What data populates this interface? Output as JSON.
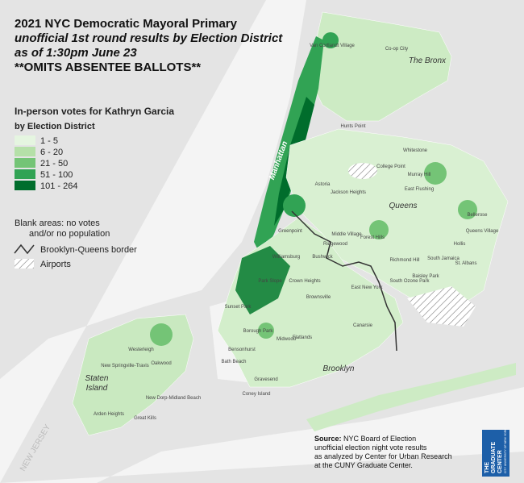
{
  "title": {
    "lines": [
      "2021 NYC Democratic Mayoral Primary",
      "unofficial 1st round results by Election District",
      "as of 1:30pm June 23",
      "**OMITS ABSENTEE BALLOTS**"
    ]
  },
  "legend": {
    "title": "In-person votes for Kathryn Garcia",
    "subtitle": "by Election District",
    "classes": [
      {
        "label": "1 - 5",
        "color": "#e5f5e0"
      },
      {
        "label": "6 - 20",
        "color": "#b5e0a8"
      },
      {
        "label": "21 - 50",
        "color": "#74c476"
      },
      {
        "label": "51 - 100",
        "color": "#31a354"
      },
      {
        "label": "101 - 264",
        "color": "#006d2c"
      }
    ]
  },
  "notes": {
    "blank": [
      "Blank areas: no votes",
      "and/or no population"
    ],
    "border": "Brooklyn-Queens border",
    "airports": "Airports"
  },
  "boroughs": [
    "The Bronx",
    "Queens",
    "Brooklyn",
    "Staten Island",
    "Manhattan"
  ],
  "neighborhoods": [
    "Van Cortlandt Village",
    "Co-op City",
    "Hunts Point",
    "Whitestone",
    "College Point",
    "Murray Hill",
    "East Flushing",
    "Bellerose",
    "Hollis",
    "Queens Village",
    "South Jamaica",
    "St. Albans",
    "Richmond Hill",
    "South Ozone Park",
    "Baisley Park",
    "Jackson Heights",
    "Astoria",
    "Middle Village",
    "Forest Hills",
    "Ridgewood",
    "Bushwick",
    "Crown Heights",
    "East New York",
    "Brownsville",
    "Canarsie",
    "Flatlands",
    "Midwood",
    "Bensonhurst",
    "Sunset Park",
    "Park Slope",
    "Williamsburg",
    "Greenpoint",
    "Gravesend",
    "Coney Island",
    "Borough Park",
    "Bath Beach",
    "Westerleigh",
    "New Springville-Travis",
    "Oakwood",
    "New Dorp-Midland Beach",
    "Arden Heights",
    "Great Kills"
  ],
  "region": "NEW JERSEY",
  "source": {
    "label": "Source:",
    "first": "NYC Board of Election",
    "lines": [
      "unofficial election night vote results",
      "as analyzed by Center for Urban Research",
      "at the CUNY Graduate Center."
    ]
  },
  "logo": {
    "lines": [
      "THE",
      "GRADUATE",
      "CENTER"
    ],
    "sub": "CITY UNIVERSITY OF NEW YORK"
  }
}
